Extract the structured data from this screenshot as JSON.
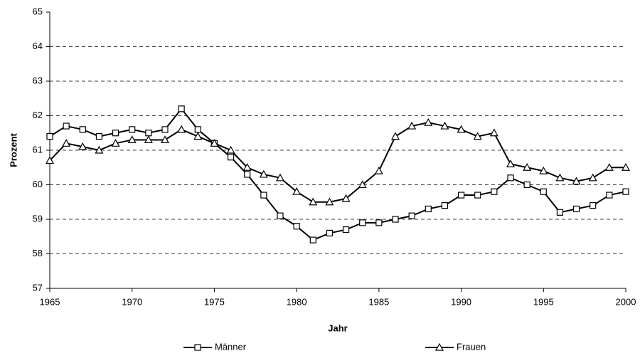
{
  "chart_data": {
    "type": "line",
    "x_label": "Jahr",
    "y_label": "Prozent",
    "x": [
      1965,
      1966,
      1967,
      1968,
      1969,
      1970,
      1971,
      1972,
      1973,
      1974,
      1975,
      1976,
      1977,
      1978,
      1979,
      1980,
      1981,
      1982,
      1983,
      1984,
      1985,
      1986,
      1987,
      1988,
      1989,
      1990,
      1991,
      1992,
      1993,
      1994,
      1995,
      1996,
      1997,
      1998,
      1999,
      2000
    ],
    "series": [
      {
        "name": "Männer",
        "color": "#000000",
        "marker": "square",
        "values": [
          61.4,
          61.7,
          61.6,
          61.4,
          61.5,
          61.6,
          61.5,
          61.6,
          62.2,
          61.6,
          61.2,
          60.8,
          60.3,
          59.7,
          59.1,
          58.8,
          58.4,
          58.6,
          58.7,
          58.9,
          58.9,
          59.0,
          59.1,
          59.3,
          59.4,
          59.7,
          59.7,
          59.8,
          60.2,
          60.0,
          59.8,
          59.2,
          59.3,
          59.4,
          59.7,
          59.8
        ]
      },
      {
        "name": "Frauen",
        "color": "#000000",
        "marker": "triangle",
        "values": [
          60.7,
          61.2,
          61.1,
          61.0,
          61.2,
          61.3,
          61.3,
          61.3,
          61.6,
          61.4,
          61.2,
          61.0,
          60.5,
          60.3,
          60.2,
          59.8,
          59.5,
          59.5,
          59.6,
          60.0,
          60.4,
          61.4,
          61.7,
          61.8,
          61.7,
          61.6,
          61.4,
          61.5,
          60.6,
          60.5,
          60.4,
          60.2,
          60.1,
          60.2,
          60.5,
          60.5
        ]
      }
    ],
    "xlim": [
      1965,
      2000
    ],
    "xticks": [
      1965,
      1970,
      1975,
      1980,
      1985,
      1990,
      1995,
      2000
    ],
    "ylim": [
      57,
      65
    ],
    "yticks": [
      57,
      58,
      59,
      60,
      61,
      62,
      63,
      64,
      65
    ],
    "grid": true,
    "legend": "bottom"
  }
}
